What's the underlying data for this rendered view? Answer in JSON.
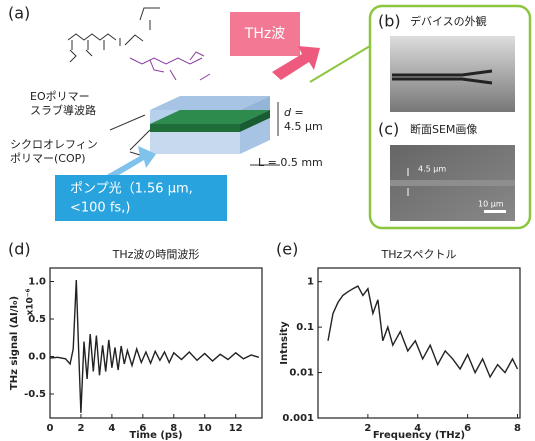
{
  "diagram": {
    "panel_a": "(a)",
    "thz_label": "THz波",
    "eo_polymer": [
      "EOポリマー",
      "スラブ導波路"
    ],
    "cop": [
      "シクロオレフィン",
      "ポリマー(COP)"
    ],
    "pump": [
      "ポンプ光（1.56 μm,",
      "<100 fs,)"
    ],
    "d_label": [
      "d =",
      "4.5 μm"
    ],
    "length": "L = 0.5 mm",
    "photo_b": {
      "label": "(b)",
      "caption": "デバイスの外観"
    },
    "photo_c": {
      "label": "(c)",
      "caption": "断面SEM画像",
      "thickness": "4.5 μm",
      "scale_bar": "10 μm"
    }
  },
  "chart_data": [
    {
      "type": "line",
      "panel": "(d)",
      "title": "THz波の時間波形",
      "xlabel": "Time (ps)",
      "ylabel": "THz signal (ΔI/I₀)",
      "annotation": "x10⁻⁶",
      "color": "#222222",
      "x": [
        0,
        0.5,
        1.0,
        1.3,
        1.5,
        1.7,
        1.85,
        2.0,
        2.2,
        2.4,
        2.6,
        2.8,
        3.0,
        3.2,
        3.4,
        3.6,
        3.8,
        4.0,
        4.2,
        4.4,
        4.6,
        4.8,
        5.0,
        5.3,
        5.6,
        5.9,
        6.2,
        6.5,
        6.8,
        7.1,
        7.4,
        7.7,
        8.0,
        8.5,
        9.0,
        9.5,
        10.0,
        10.5,
        11.0,
        11.5,
        12.0,
        12.5,
        13.0,
        13.5
      ],
      "values": [
        -0.02,
        -0.01,
        -0.03,
        -0.1,
        0.1,
        1.02,
        0.1,
        -0.75,
        0.2,
        -0.3,
        0.3,
        -0.2,
        0.28,
        -0.25,
        0.15,
        -0.2,
        0.22,
        -0.15,
        0.12,
        -0.18,
        0.14,
        -0.1,
        0.08,
        -0.12,
        0.1,
        -0.08,
        0.06,
        -0.09,
        0.07,
        -0.05,
        0.06,
        -0.08,
        0.05,
        -0.04,
        0.06,
        -0.05,
        0.04,
        -0.06,
        0.03,
        -0.04,
        0.05,
        -0.03,
        0.02,
        -0.01
      ],
      "xlim": [
        0,
        13.7
      ],
      "ylim": [
        -0.82,
        1.18
      ],
      "xticks": [
        0,
        2,
        4,
        6,
        8,
        10,
        12
      ],
      "yticks": [
        {
          "value": -0.5,
          "label": "-0.5"
        },
        {
          "value": 0,
          "label": "0.0"
        },
        {
          "value": 0.5,
          "label": "0.5"
        },
        {
          "value": 1,
          "label": "1.0"
        }
      ],
      "log_y": false
    },
    {
      "type": "line",
      "panel": "(e)",
      "title": "THzスペクトル",
      "xlabel": "Frequency (THz)",
      "ylabel": "Intnsity",
      "color": "#222222",
      "x": [
        0.4,
        0.6,
        0.8,
        1.0,
        1.2,
        1.4,
        1.6,
        1.8,
        2.0,
        2.2,
        2.4,
        2.6,
        2.8,
        3.0,
        3.3,
        3.6,
        3.9,
        4.2,
        4.5,
        4.8,
        5.1,
        5.4,
        5.7,
        6.0,
        6.3,
        6.6,
        6.9,
        7.2,
        7.5,
        7.8,
        8.0
      ],
      "values": [
        0.05,
        0.2,
        0.35,
        0.5,
        0.6,
        0.7,
        0.8,
        0.5,
        0.7,
        0.2,
        0.4,
        0.05,
        0.1,
        0.04,
        0.08,
        0.03,
        0.05,
        0.02,
        0.04,
        0.015,
        0.03,
        0.02,
        0.012,
        0.025,
        0.01,
        0.02,
        0.008,
        0.015,
        0.01,
        0.02,
        0.012
      ],
      "xlim": [
        0,
        8.1
      ],
      "ylim": [
        0.001,
        2
      ],
      "xticks": [
        2,
        4,
        6,
        8
      ],
      "yticks": [
        0.001,
        0.01,
        0.1,
        1
      ],
      "log_y": true
    }
  ]
}
